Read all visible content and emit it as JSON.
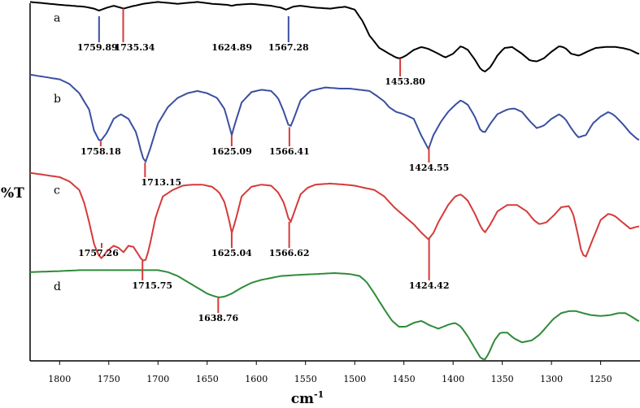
{
  "chart_data": {
    "type": "line",
    "xlabel": "cm",
    "xlabel_exponent": "-1",
    "ylabel": "%T",
    "xlim": [
      1830,
      1210
    ],
    "x_reversed": true,
    "xticks": [
      1800,
      1750,
      1700,
      1650,
      1600,
      1550,
      1500,
      1450,
      1400,
      1350,
      1300,
      1250
    ],
    "y_tick_labels": false,
    "grid": false,
    "legend": "none",
    "series": [
      {
        "label": "a",
        "color": "#000000",
        "x": [
          1830,
          1800,
          1775,
          1765,
          1760,
          1752,
          1745,
          1738,
          1735,
          1728,
          1715,
          1700,
          1690,
          1680,
          1660,
          1645,
          1630,
          1625,
          1620,
          1605,
          1595,
          1585,
          1575,
          1570,
          1567,
          1563,
          1555,
          1540,
          1525,
          1510,
          1500,
          1492,
          1485,
          1475,
          1465,
          1458,
          1454,
          1448,
          1440,
          1432,
          1425,
          1415,
          1408,
          1400,
          1392,
          1385,
          1378,
          1372,
          1368,
          1362,
          1355,
          1348,
          1340,
          1330,
          1322,
          1315,
          1308,
          1300,
          1292,
          1286,
          1280,
          1272,
          1264,
          1255,
          1245,
          1235,
          1228,
          1220,
          1212
        ],
        "y": [
          98,
          95,
          93,
          91,
          89,
          92,
          94,
          92,
          91,
          93,
          96,
          98,
          97,
          96,
          98,
          96,
          95,
          94,
          95,
          96,
          95,
          94,
          92,
          90,
          91,
          93,
          94,
          92,
          91,
          93,
          90,
          78,
          63,
          50,
          44,
          40,
          39,
          42,
          48,
          51,
          49,
          44,
          40,
          44,
          52,
          48,
          38,
          28,
          25,
          30,
          42,
          50,
          51,
          44,
          37,
          36,
          39,
          46,
          52,
          50,
          44,
          42,
          46,
          50,
          51,
          51,
          50,
          48,
          44
        ]
      },
      {
        "label": "b",
        "color": "#3a4fa0",
        "x": [
          1830,
          1815,
          1800,
          1790,
          1780,
          1770,
          1765,
          1759,
          1752,
          1745,
          1738,
          1730,
          1722,
          1716,
          1713,
          1708,
          1700,
          1690,
          1680,
          1670,
          1660,
          1650,
          1640,
          1632,
          1628,
          1625,
          1622,
          1615,
          1605,
          1595,
          1585,
          1578,
          1572,
          1568,
          1566,
          1562,
          1555,
          1545,
          1530,
          1515,
          1505,
          1495,
          1485,
          1478,
          1470,
          1465,
          1458,
          1450,
          1440,
          1432,
          1425,
          1420,
          1412,
          1405,
          1398,
          1392,
          1385,
          1378,
          1372,
          1368,
          1362,
          1355,
          1345,
          1338,
          1330,
          1322,
          1315,
          1308,
          1300,
          1292,
          1286,
          1280,
          1273,
          1265,
          1258,
          1250,
          1242,
          1236,
          1228,
          1220,
          1212
        ],
        "y": [
          98,
          96,
          94,
          90,
          82,
          68,
          50,
          40,
          48,
          60,
          64,
          60,
          48,
          28,
          22,
          34,
          56,
          70,
          78,
          82,
          84,
          82,
          78,
          68,
          55,
          46,
          55,
          74,
          83,
          85,
          84,
          78,
          66,
          56,
          52,
          60,
          76,
          84,
          87,
          86,
          86,
          85,
          84,
          80,
          75,
          70,
          66,
          64,
          60,
          45,
          34,
          46,
          58,
          66,
          72,
          76,
          72,
          62,
          50,
          48,
          56,
          64,
          68,
          69,
          66,
          58,
          52,
          54,
          60,
          64,
          60,
          52,
          44,
          46,
          56,
          62,
          66,
          63,
          56,
          48,
          42
        ]
      },
      {
        "label": "c",
        "color": "#d63a3a",
        "x": [
          1830,
          1815,
          1800,
          1790,
          1780,
          1775,
          1770,
          1765,
          1761,
          1757,
          1752,
          1745,
          1740,
          1735,
          1730,
          1725,
          1720,
          1716,
          1712,
          1708,
          1702,
          1695,
          1685,
          1675,
          1665,
          1655,
          1645,
          1638,
          1632,
          1628,
          1625,
          1621,
          1615,
          1605,
          1595,
          1585,
          1578,
          1572,
          1568,
          1566,
          1562,
          1555,
          1548,
          1540,
          1525,
          1510,
          1500,
          1490,
          1480,
          1470,
          1460,
          1450,
          1440,
          1432,
          1425,
          1420,
          1415,
          1410,
          1405,
          1398,
          1392,
          1385,
          1378,
          1372,
          1368,
          1362,
          1355,
          1345,
          1335,
          1325,
          1318,
          1312,
          1305,
          1298,
          1290,
          1282,
          1278,
          1273,
          1269,
          1265,
          1258,
          1250,
          1242,
          1236,
          1228,
          1220,
          1212
        ],
        "y": [
          98,
          96,
          94,
          90,
          82,
          70,
          52,
          32,
          22,
          18,
          25,
          30,
          28,
          24,
          30,
          29,
          22,
          16,
          17,
          32,
          58,
          76,
          82,
          86,
          87,
          87,
          85,
          80,
          70,
          55,
          42,
          54,
          76,
          85,
          87,
          86,
          80,
          70,
          58,
          50,
          60,
          78,
          84,
          87,
          88,
          87,
          86,
          84,
          82,
          76,
          66,
          58,
          50,
          42,
          36,
          42,
          52,
          60,
          68,
          76,
          78,
          72,
          60,
          48,
          42,
          50,
          62,
          68,
          68,
          62,
          54,
          50,
          52,
          58,
          66,
          67,
          60,
          40,
          22,
          20,
          36,
          54,
          60,
          58,
          52,
          46,
          48
        ]
      },
      {
        "label": "d",
        "color": "#2e8b3a",
        "x": [
          1830,
          1800,
          1780,
          1760,
          1740,
          1720,
          1700,
          1690,
          1680,
          1670,
          1660,
          1650,
          1645,
          1638,
          1632,
          1625,
          1615,
          1605,
          1595,
          1585,
          1575,
          1560,
          1540,
          1520,
          1505,
          1495,
          1488,
          1480,
          1470,
          1462,
          1455,
          1448,
          1440,
          1432,
          1425,
          1415,
          1405,
          1398,
          1392,
          1385,
          1378,
          1372,
          1368,
          1364,
          1358,
          1352,
          1345,
          1338,
          1330,
          1320,
          1312,
          1305,
          1298,
          1290,
          1282,
          1275,
          1268,
          1260,
          1250,
          1240,
          1232,
          1225,
          1218,
          1212
        ],
        "y": [
          96,
          97,
          98,
          98,
          98,
          98,
          98,
          96,
          92,
          86,
          80,
          74,
          72,
          70,
          71,
          74,
          80,
          85,
          88,
          90,
          92,
          93,
          94,
          95,
          94,
          92,
          86,
          74,
          58,
          46,
          40,
          40,
          44,
          46,
          42,
          38,
          42,
          44,
          40,
          30,
          18,
          8,
          6,
          12,
          26,
          34,
          34,
          28,
          24,
          26,
          32,
          40,
          48,
          54,
          56,
          56,
          54,
          52,
          51,
          52,
          54,
          54,
          50,
          46
        ]
      }
    ],
    "peak_labels": [
      {
        "series": "a",
        "x": 1759.89,
        "text": "1759.89",
        "marker_color": "#3a4fa0"
      },
      {
        "series": "a",
        "x": 1735.34,
        "text": "1735.34",
        "marker_color": "#d63a3a"
      },
      {
        "series": "a",
        "x": 1624.89,
        "text": "1624.89",
        "marker_color": null
      },
      {
        "series": "a",
        "x": 1567.28,
        "text": "1567.28",
        "marker_color": "#3a4fa0"
      },
      {
        "series": "a",
        "x": 1453.8,
        "text": "1453.80",
        "marker_color": "#d63a3a"
      },
      {
        "series": "b",
        "x": 1758.18,
        "text": "1758.18",
        "marker_color": "#d63a3a"
      },
      {
        "series": "b",
        "x": 1713.15,
        "text": "1713.15",
        "marker_color": "#d63a3a"
      },
      {
        "series": "b",
        "x": 1625.09,
        "text": "1625.09",
        "marker_color": "#d63a3a"
      },
      {
        "series": "b",
        "x": 1566.41,
        "text": "1566.41",
        "marker_color": "#d63a3a"
      },
      {
        "series": "b",
        "x": 1424.55,
        "text": "1424.55",
        "marker_color": "#d63a3a"
      },
      {
        "series": "c",
        "x": 1757.26,
        "text": "1757.26",
        "marker_color": "#d63a3a"
      },
      {
        "series": "c",
        "x": 1715.75,
        "text": "1715.75",
        "marker_color": "#d63a3a"
      },
      {
        "series": "c",
        "x": 1625.04,
        "text": "1625.04",
        "marker_color": "#d63a3a"
      },
      {
        "series": "c",
        "x": 1566.62,
        "text": "1566.62",
        "marker_color": "#d63a3a"
      },
      {
        "series": "c",
        "x": 1424.42,
        "text": "1424.42",
        "marker_color": "#d63a3a"
      },
      {
        "series": "d",
        "x": 1638.76,
        "text": "1638.76",
        "marker_color": "#d63a3a"
      }
    ]
  }
}
